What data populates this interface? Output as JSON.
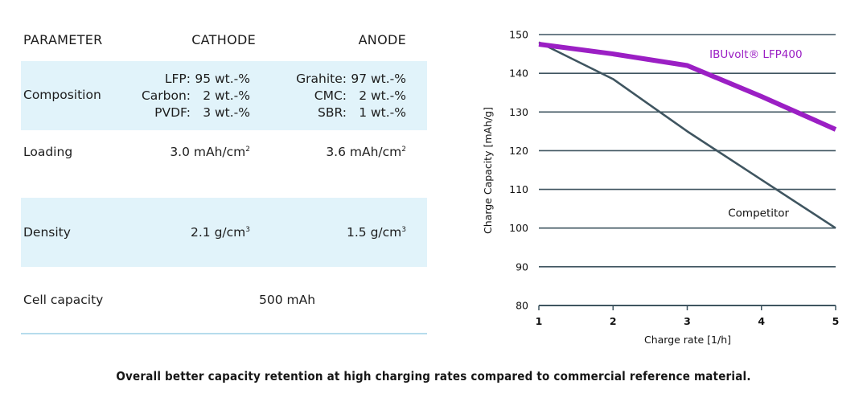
{
  "table": {
    "headers": [
      "PARAMETER",
      "CATHODE",
      "ANODE"
    ],
    "rows": {
      "composition": {
        "label": "Composition",
        "cathode": [
          {
            "name": "LFP:",
            "value": "95 wt.-%"
          },
          {
            "name": "Carbon:",
            "value": "2 wt.-%"
          },
          {
            "name": "PVDF:",
            "value": "3 wt.-%"
          }
        ],
        "anode": [
          {
            "name": "Grahite:",
            "value": "97 wt.-%"
          },
          {
            "name": "CMC:",
            "value": "2 wt.-%"
          },
          {
            "name": "SBR:",
            "value": "1 wt.-%"
          }
        ]
      },
      "loading": {
        "label": "Loading",
        "cathode": "3.0 mAh/cm",
        "cathode_sup": "2",
        "anode": "3.6 mAh/cm",
        "anode_sup": "2"
      },
      "density": {
        "label": "Density",
        "cathode": "2.1 g/cm",
        "cathode_sup": "3",
        "anode": "1.5 g/cm",
        "anode_sup": "3"
      },
      "cell_capacity": {
        "label": "Cell capacity",
        "value": "500 mAh"
      }
    },
    "colors": {
      "shaded_row": "#e1f3fa",
      "rule": "#b6dcec"
    }
  },
  "chart_data": {
    "type": "line",
    "title": "",
    "xlabel": "Charge rate [1/h]",
    "ylabel": "Charge Capacity [mAh/g]",
    "x": [
      1,
      2,
      3,
      4,
      5
    ],
    "xlim": [
      1,
      5
    ],
    "ylim": [
      80,
      150
    ],
    "xticks": [
      1,
      2,
      3,
      4,
      5
    ],
    "yticks": [
      80,
      90,
      100,
      110,
      120,
      130,
      140,
      150
    ],
    "grid": "horizontal",
    "legend": "inline labels",
    "series": [
      {
        "name": "IBUvolt® LFP400",
        "color": "#9b1fc4",
        "values": [
          147.5,
          145,
          142,
          134,
          125.5
        ]
      },
      {
        "name": "Competitor",
        "color": "#3f5560",
        "values": [
          148,
          138.5,
          125,
          112.5,
          100
        ]
      }
    ],
    "annotations": [
      {
        "text": "IBUvolt® LFP400",
        "at_x": 3.3,
        "at_y": 144,
        "color": "#9b1fc4"
      },
      {
        "text": "Competitor",
        "at_x": 3.55,
        "at_y": 103,
        "color": "#111111"
      }
    ],
    "grid_color": "#3f5560"
  },
  "caption": "Overall better capacity retention at high charging rates compared to commercial reference material."
}
